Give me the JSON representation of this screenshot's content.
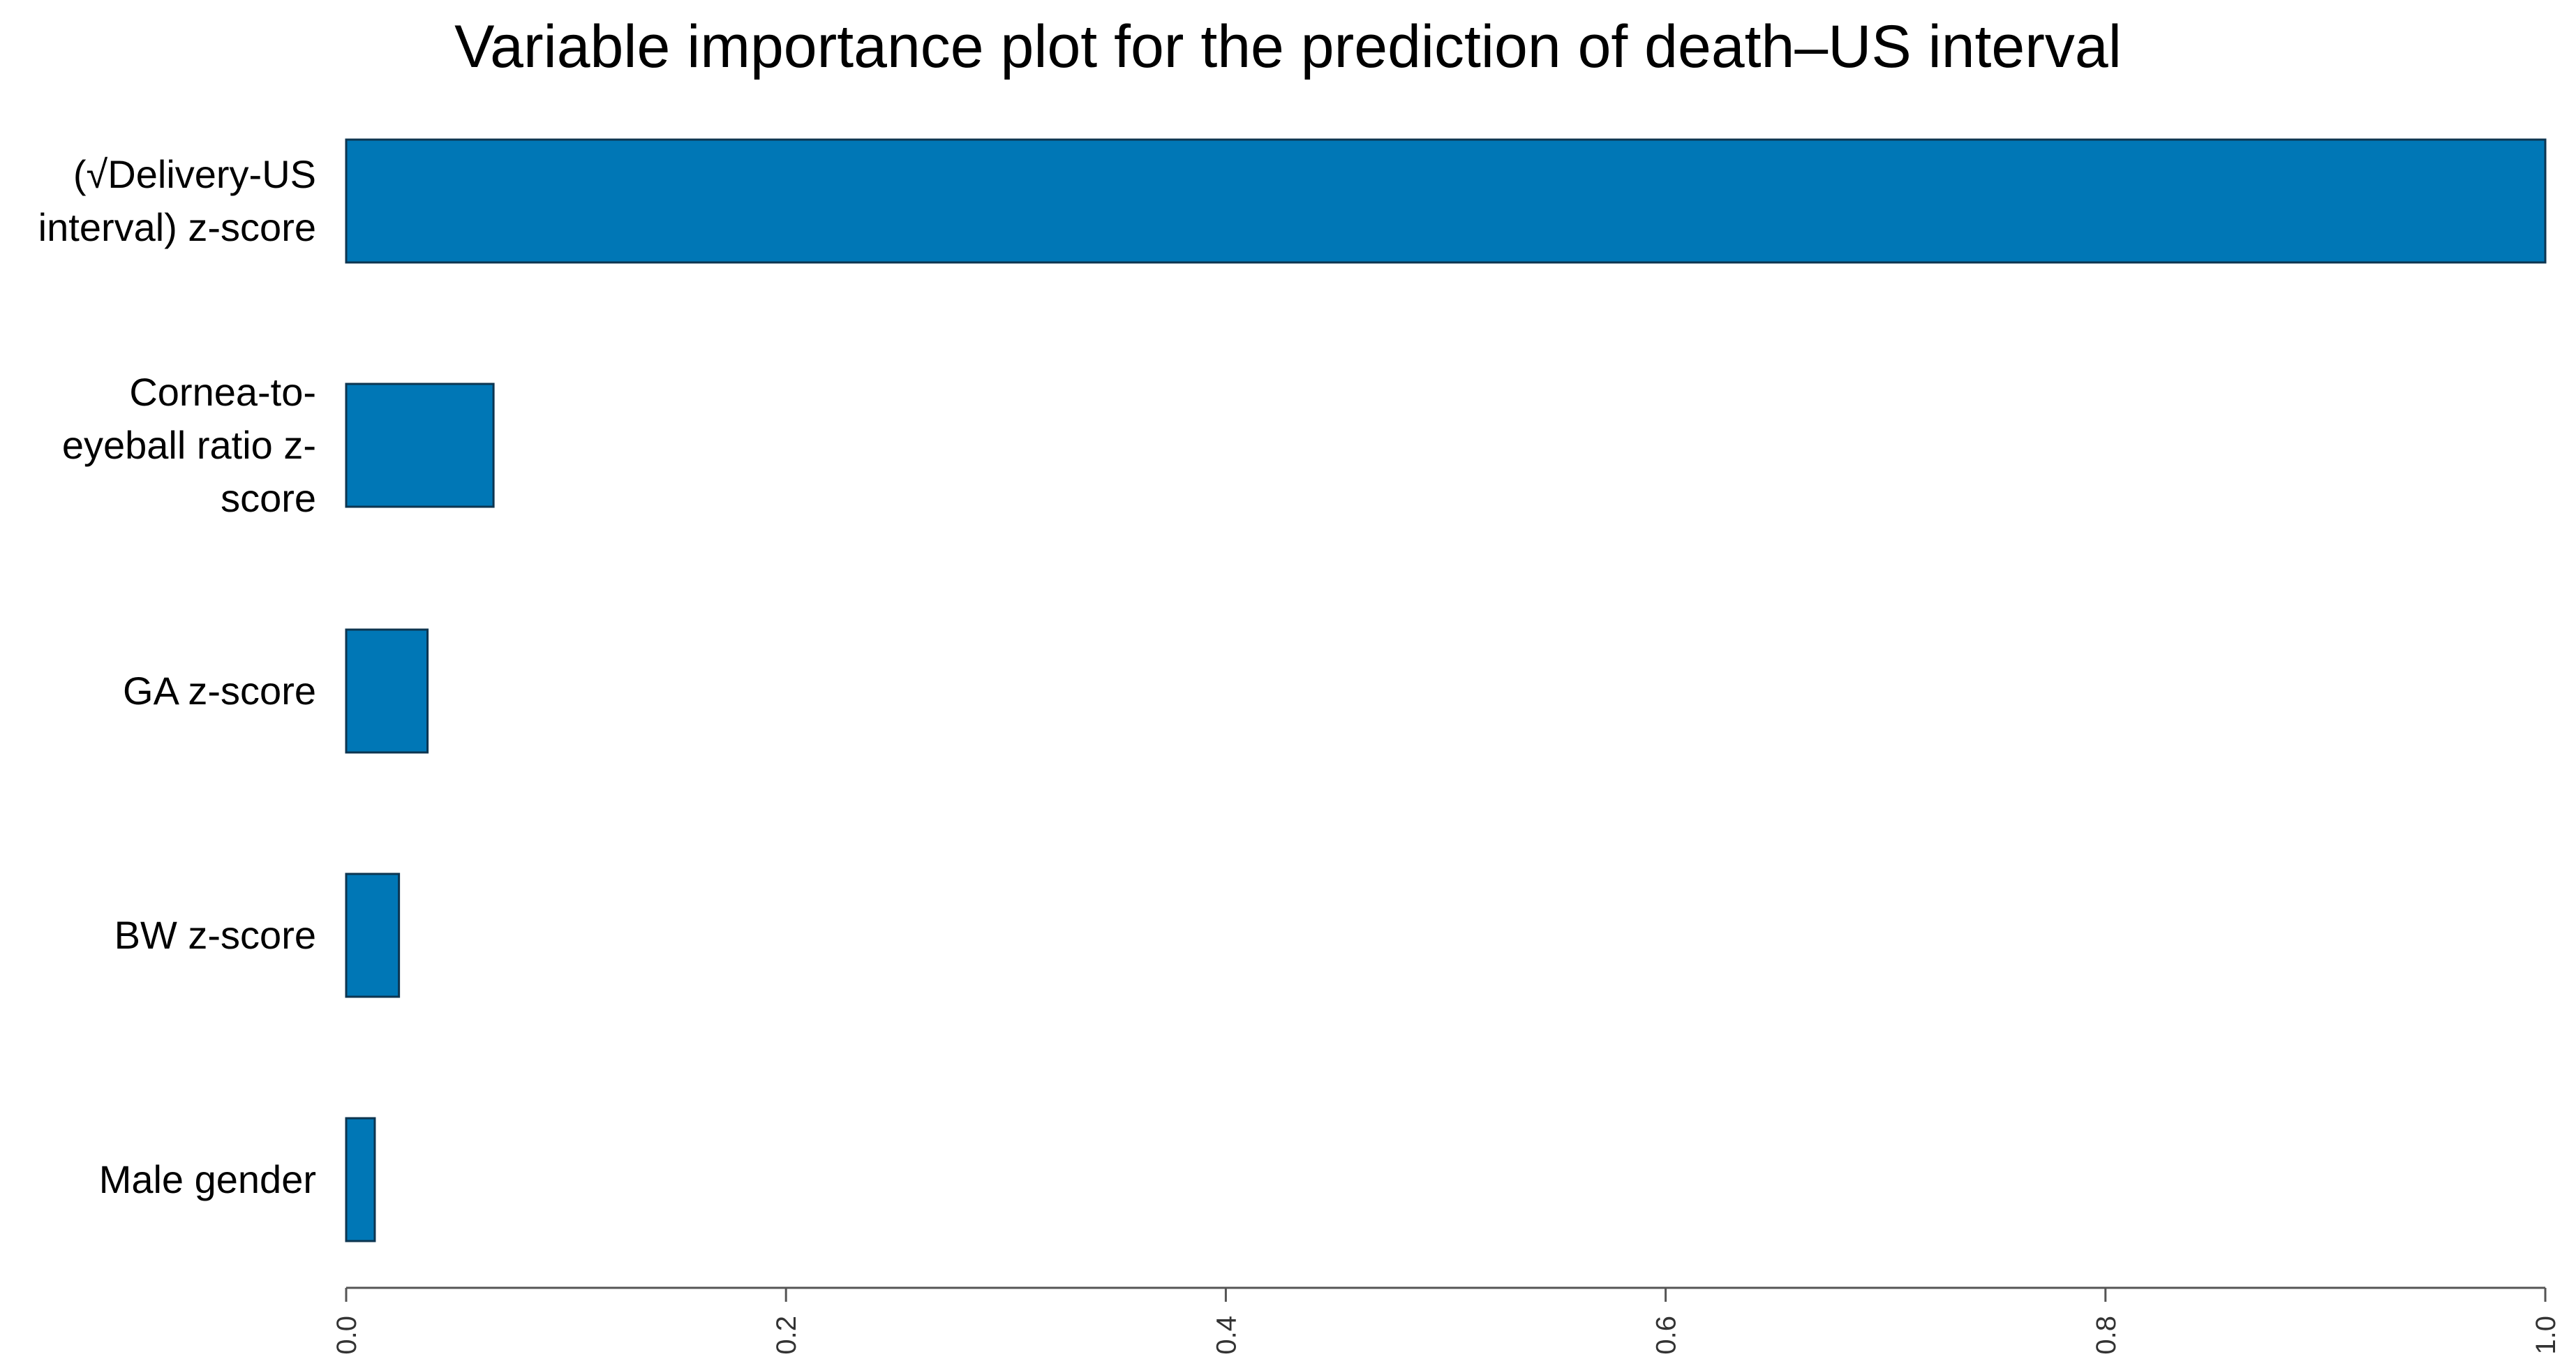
{
  "chart_data": {
    "type": "bar",
    "orientation": "horizontal",
    "title": "Variable importance plot for the prediction of death–US interval",
    "xlabel": "",
    "ylabel": "",
    "categories": [
      "(√Delivery-US\ninterval) z-score",
      "Cornea-to-\neyeball ratio z-\nscore",
      "GA z-score",
      "BW z-score",
      "Male gender"
    ],
    "values": [
      1.0,
      0.067,
      0.037,
      0.024,
      0.013
    ],
    "xlim": [
      0,
      1.0
    ],
    "xticks": [
      "0.0",
      "0.2",
      "0.4",
      "0.6",
      "0.8",
      "1.0"
    ],
    "grid": false,
    "legend": "none",
    "bar_color": "#0077b6",
    "bar_edge_color": "#0d3550"
  }
}
